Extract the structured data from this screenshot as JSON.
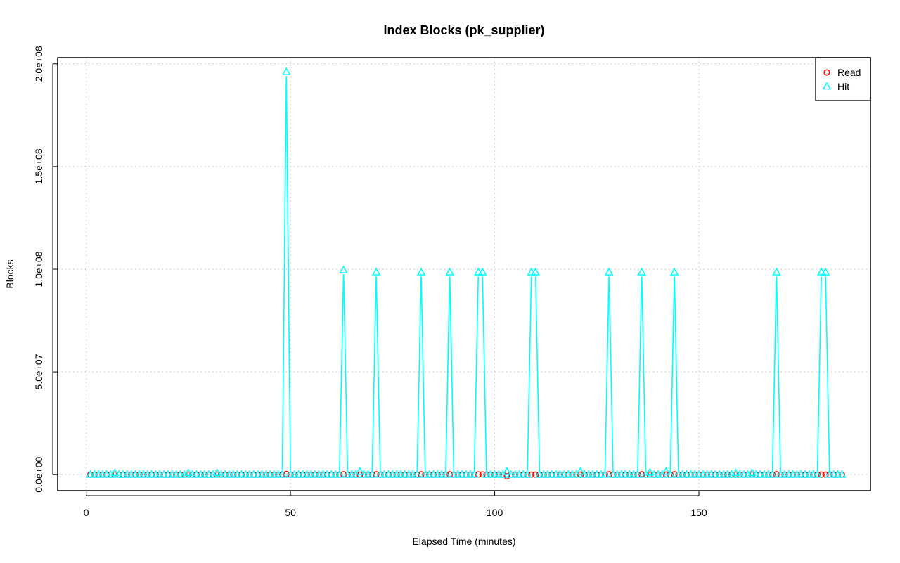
{
  "chart_data": {
    "type": "line",
    "title": "Index Blocks (pk_supplier)",
    "xlabel": "Elapsed Time (minutes)",
    "ylabel": "Blocks",
    "xlim": [
      -7,
      192
    ],
    "ylim": [
      -7800000,
      203000000
    ],
    "x_ticks": [
      0,
      50,
      100,
      150
    ],
    "x_tick_labels": [
      "0",
      "50",
      "100",
      "150"
    ],
    "y_ticks": [
      0,
      50000000,
      100000000,
      150000000,
      200000000
    ],
    "y_tick_labels": [
      "0.0e+00",
      "5.0e+07",
      "1.0e+08",
      "1.5e+08",
      "2.0e+08"
    ],
    "grid": true,
    "legend_position": "top-right",
    "x_start": 1,
    "x_end": 185,
    "series": [
      {
        "name": "Read",
        "color": "#ff0000",
        "marker": "circle",
        "connect": false,
        "baseline": 0,
        "spikes": [
          {
            "x": 49,
            "y": 300000
          },
          {
            "x": 63,
            "y": 200000
          },
          {
            "x": 71,
            "y": 200000
          },
          {
            "x": 82,
            "y": 200000
          },
          {
            "x": 89,
            "y": 200000
          },
          {
            "x": 96,
            "y": 100000
          },
          {
            "x": 97,
            "y": 100000
          },
          {
            "x": 103,
            "y": -800000
          },
          {
            "x": 109,
            "y": 0
          },
          {
            "x": 110,
            "y": 0
          },
          {
            "x": 128,
            "y": 200000
          },
          {
            "x": 136,
            "y": 200000
          },
          {
            "x": 144,
            "y": 200000
          },
          {
            "x": 169,
            "y": 200000
          },
          {
            "x": 180,
            "y": 0
          },
          {
            "x": 181,
            "y": 0
          }
        ]
      },
      {
        "name": "Hit",
        "color": "#00ffff",
        "marker": "triangle",
        "connect": true,
        "baseline": 0,
        "spikes": [
          {
            "x": 7,
            "y": 800000
          },
          {
            "x": 25,
            "y": 800000
          },
          {
            "x": 32,
            "y": 800000
          },
          {
            "x": 49,
            "y": 196000000
          },
          {
            "x": 63,
            "y": 99500000
          },
          {
            "x": 67,
            "y": 1500000
          },
          {
            "x": 71,
            "y": 98500000
          },
          {
            "x": 82,
            "y": 98500000
          },
          {
            "x": 89,
            "y": 98500000
          },
          {
            "x": 96,
            "y": 98500000
          },
          {
            "x": 97,
            "y": 98500000
          },
          {
            "x": 103,
            "y": 1500000
          },
          {
            "x": 109,
            "y": 98500000
          },
          {
            "x": 110,
            "y": 98500000
          },
          {
            "x": 121,
            "y": 1500000
          },
          {
            "x": 128,
            "y": 98500000
          },
          {
            "x": 136,
            "y": 98500000
          },
          {
            "x": 138,
            "y": 1000000
          },
          {
            "x": 142,
            "y": 1500000
          },
          {
            "x": 144,
            "y": 98500000
          },
          {
            "x": 159,
            "y": 800000
          },
          {
            "x": 163,
            "y": 800000
          },
          {
            "x": 169,
            "y": 98500000
          },
          {
            "x": 180,
            "y": 98500000
          },
          {
            "x": 181,
            "y": 98500000
          }
        ]
      }
    ]
  }
}
